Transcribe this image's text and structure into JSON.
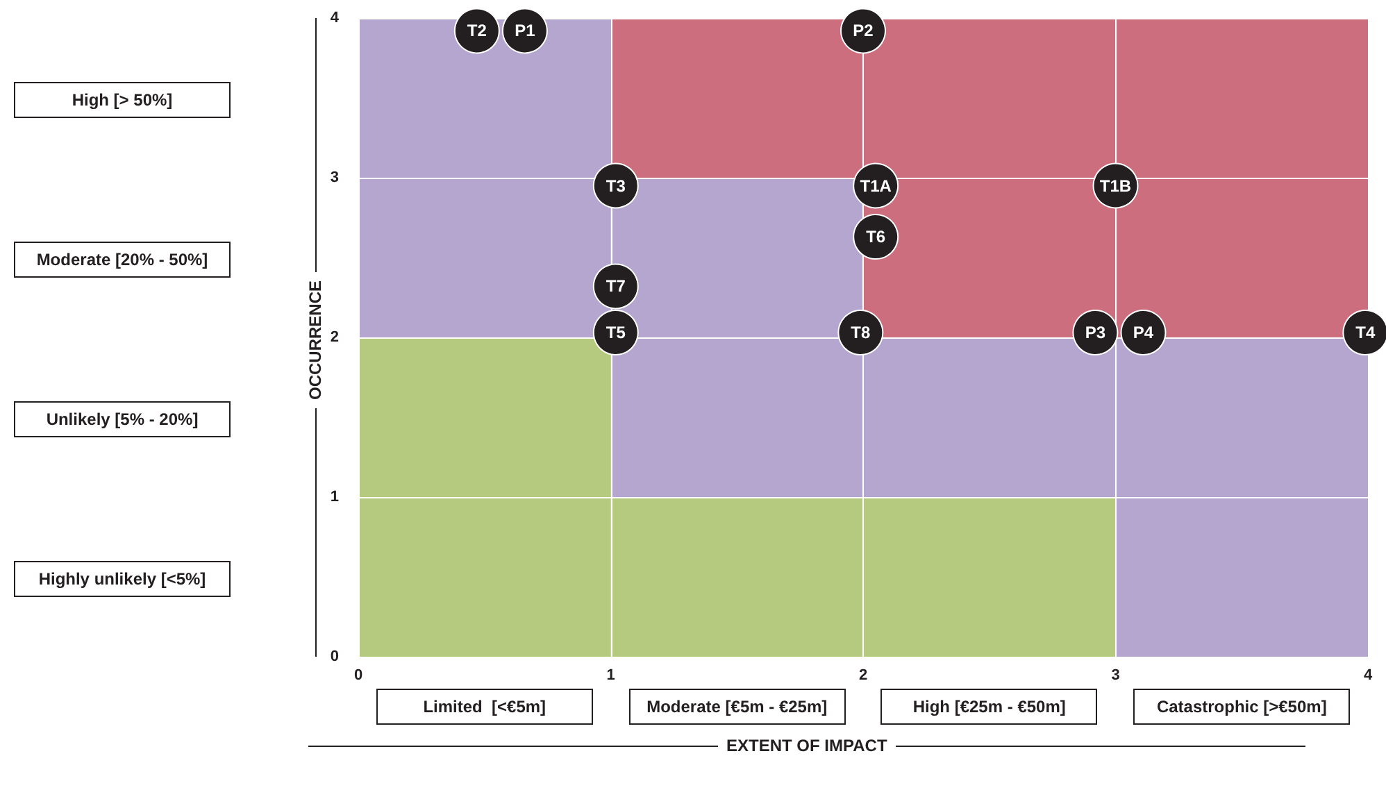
{
  "chart_data": {
    "type": "scatter",
    "xlabel": "EXTENT OF IMPACT",
    "ylabel": "OCCURRENCE",
    "annotations": [
      "High [> 50%]",
      "Moderate [20% - 50%]",
      "Unlikely [5% - 20%]",
      "Highly unlikely [<5%]",
      "Limited  [<€5m]",
      "Moderate [€5m - €25m]",
      "High [€25m - €50m]",
      "Catastrophic [>€50m]"
    ],
    "xlim": [
      0,
      4
    ],
    "ylim": [
      0,
      4
    ],
    "xticks": [
      0,
      1,
      2,
      3,
      4
    ],
    "yticks": [
      0,
      1,
      2,
      3,
      4
    ],
    "grid": true,
    "marker": "circle",
    "stacked": true,
    "series": [
      {
        "type": "bar",
        "color": "#b5ca7e",
        "x": [
          0.5,
          1.5,
          2.5,
          3.5
        ],
        "values": [
          2,
          1,
          1,
          0
        ]
      },
      {
        "type": "bar",
        "color": "#b5a6cf",
        "x": [
          0.5,
          1.5,
          2.5,
          3.5
        ],
        "values": [
          2,
          2,
          1,
          2
        ]
      },
      {
        "type": "bar",
        "color": "#cc6e7e",
        "x": [
          0.5,
          1.5,
          2.5,
          3.5
        ],
        "values": [
          0,
          1,
          2,
          2
        ]
      },
      {
        "name": "T2",
        "color": "#231f20",
        "x": [
          0.47
        ],
        "values": [
          3.92
        ]
      },
      {
        "name": "P1",
        "color": "#231f20",
        "x": [
          0.66
        ],
        "values": [
          3.92
        ]
      },
      {
        "name": "P2",
        "color": "#231f20",
        "x": [
          2.0
        ],
        "values": [
          3.92
        ]
      },
      {
        "name": "T3",
        "color": "#231f20",
        "x": [
          1.02
        ],
        "values": [
          2.95
        ]
      },
      {
        "name": "T1A",
        "color": "#231f20",
        "x": [
          2.05
        ],
        "values": [
          2.95
        ]
      },
      {
        "name": "T1B",
        "color": "#231f20",
        "x": [
          3.0
        ],
        "values": [
          2.95
        ]
      },
      {
        "name": "T6",
        "color": "#231f20",
        "x": [
          2.05
        ],
        "values": [
          2.63
        ]
      },
      {
        "name": "T7",
        "color": "#231f20",
        "x": [
          1.02
        ],
        "values": [
          2.32
        ]
      },
      {
        "name": "T5",
        "color": "#231f20",
        "x": [
          1.02
        ],
        "values": [
          2.03
        ]
      },
      {
        "name": "T8",
        "color": "#231f20",
        "x": [
          1.99
        ],
        "values": [
          2.03
        ]
      },
      {
        "name": "P3",
        "color": "#231f20",
        "x": [
          2.92
        ],
        "values": [
          2.03
        ]
      },
      {
        "name": "P4",
        "color": "#231f20",
        "x": [
          3.11
        ],
        "values": [
          2.03
        ]
      },
      {
        "name": "T4",
        "color": "#231f20",
        "x": [
          3.99
        ],
        "values": [
          2.03
        ]
      }
    ]
  }
}
